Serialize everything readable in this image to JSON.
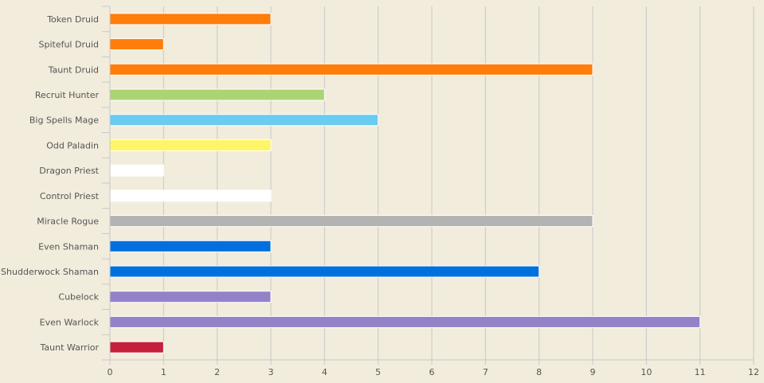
{
  "chart_data": {
    "type": "bar",
    "orientation": "horizontal",
    "title": "",
    "xlabel": "",
    "ylabel": "",
    "xlim": [
      0,
      12
    ],
    "x_ticks": [
      0,
      1,
      2,
      3,
      4,
      5,
      6,
      7,
      8,
      9,
      10,
      11,
      12
    ],
    "grid": true,
    "legend": "none",
    "categories": [
      "Token Druid",
      "Spiteful Druid",
      "Taunt Druid",
      "Recruit Hunter",
      "Big Spells Mage",
      "Odd Paladin",
      "Dragon Priest",
      "Control Priest",
      "Miracle Rogue",
      "Even Shaman",
      "Shudderwock Shaman",
      "Cubelock",
      "Even Warlock",
      "Taunt Warrior"
    ],
    "values": [
      3,
      1,
      9,
      4,
      5,
      3,
      1,
      3,
      9,
      3,
      8,
      3,
      11,
      1
    ],
    "colors": [
      "#ff7d0a",
      "#ff7d0a",
      "#ff7d0a",
      "#abd473",
      "#69ccf0",
      "#fff569",
      "#ffffff",
      "#ffffff",
      "#b3b3b3",
      "#0070de",
      "#0070de",
      "#9482c9",
      "#9482c9",
      "#c41f3b"
    ],
    "background_color": "#f2ecdc",
    "grid_color": "#c8c8c8"
  }
}
